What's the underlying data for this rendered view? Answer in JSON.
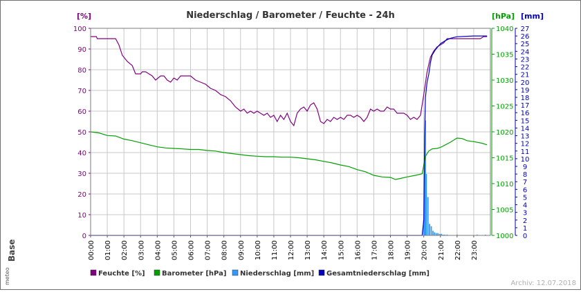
{
  "chart_data": {
    "type": "line",
    "title": "Niederschlag / Barometer / Feuchte - 24h",
    "axes": {
      "left": {
        "label": "[%]",
        "min": 0,
        "max": 100,
        "step": 10,
        "color": "#800080"
      },
      "right1": {
        "label": "[hPa]",
        "min": 1000,
        "max": 1040,
        "step": 5,
        "color": "#00a000"
      },
      "right2": {
        "label": "[mm]",
        "min": 0,
        "max": 27,
        "step": 1,
        "color": "#0000c0"
      }
    },
    "x_ticks": [
      "00:00",
      "01:00",
      "02:00",
      "03:00",
      "04:00",
      "05:00",
      "06:00",
      "07:00",
      "08:00",
      "09:00",
      "10:00",
      "11:00",
      "12:00",
      "13:00",
      "14:00",
      "15:00",
      "16:00",
      "17:00",
      "18:00",
      "19:00",
      "20:00",
      "21:00",
      "22:00",
      "23:00"
    ],
    "grid": true,
    "legend_position": "bottom",
    "series": [
      {
        "name": "Feuchte [%]",
        "axis": "left",
        "color": "#800080",
        "style": "line",
        "points": [
          [
            0,
            96
          ],
          [
            0.35,
            96
          ],
          [
            0.4,
            95
          ],
          [
            1.5,
            95
          ],
          [
            1.7,
            92
          ],
          [
            1.9,
            87
          ],
          [
            2.2,
            84
          ],
          [
            2.5,
            82
          ],
          [
            2.7,
            78
          ],
          [
            3.0,
            78
          ],
          [
            3.1,
            79
          ],
          [
            3.3,
            79
          ],
          [
            3.5,
            78
          ],
          [
            3.7,
            77
          ],
          [
            3.9,
            75
          ],
          [
            4.2,
            77
          ],
          [
            4.4,
            77
          ],
          [
            4.6,
            75
          ],
          [
            4.8,
            74
          ],
          [
            5.0,
            76
          ],
          [
            5.2,
            75
          ],
          [
            5.4,
            77
          ],
          [
            5.7,
            77
          ],
          [
            6.0,
            77
          ],
          [
            6.3,
            75
          ],
          [
            6.6,
            74
          ],
          [
            6.9,
            73
          ],
          [
            7.2,
            71
          ],
          [
            7.5,
            70
          ],
          [
            7.8,
            68
          ],
          [
            8.1,
            67
          ],
          [
            8.4,
            65
          ],
          [
            8.7,
            62
          ],
          [
            9.0,
            60
          ],
          [
            9.2,
            61
          ],
          [
            9.4,
            59
          ],
          [
            9.6,
            60
          ],
          [
            9.8,
            59
          ],
          [
            10.0,
            60
          ],
          [
            10.2,
            59
          ],
          [
            10.4,
            58
          ],
          [
            10.6,
            59
          ],
          [
            10.8,
            57
          ],
          [
            11.0,
            58
          ],
          [
            11.2,
            55
          ],
          [
            11.4,
            58
          ],
          [
            11.6,
            56
          ],
          [
            11.8,
            59
          ],
          [
            12.0,
            55
          ],
          [
            12.2,
            53
          ],
          [
            12.4,
            59
          ],
          [
            12.6,
            61
          ],
          [
            12.8,
            62
          ],
          [
            13.0,
            60
          ],
          [
            13.2,
            63
          ],
          [
            13.4,
            64
          ],
          [
            13.6,
            61
          ],
          [
            13.8,
            55
          ],
          [
            14.0,
            54
          ],
          [
            14.2,
            56
          ],
          [
            14.4,
            55
          ],
          [
            14.6,
            57
          ],
          [
            14.8,
            56
          ],
          [
            15.0,
            57
          ],
          [
            15.2,
            56
          ],
          [
            15.4,
            58
          ],
          [
            15.6,
            58
          ],
          [
            15.8,
            57
          ],
          [
            16.0,
            58
          ],
          [
            16.2,
            57
          ],
          [
            16.4,
            55
          ],
          [
            16.6,
            57
          ],
          [
            16.8,
            61
          ],
          [
            17.0,
            60
          ],
          [
            17.2,
            61
          ],
          [
            17.4,
            60
          ],
          [
            17.6,
            60
          ],
          [
            17.8,
            62
          ],
          [
            18.0,
            61
          ],
          [
            18.2,
            61
          ],
          [
            18.4,
            59
          ],
          [
            18.6,
            59
          ],
          [
            18.8,
            59
          ],
          [
            19.0,
            58
          ],
          [
            19.2,
            56
          ],
          [
            19.4,
            57
          ],
          [
            19.6,
            56
          ],
          [
            19.8,
            58
          ],
          [
            20.0,
            68
          ],
          [
            20.2,
            79
          ],
          [
            20.4,
            86
          ],
          [
            20.6,
            89
          ],
          [
            20.8,
            91
          ],
          [
            21.0,
            92
          ],
          [
            21.2,
            93
          ],
          [
            21.4,
            95
          ],
          [
            21.7,
            95
          ],
          [
            22.0,
            95
          ],
          [
            22.4,
            95
          ],
          [
            22.8,
            95
          ],
          [
            23.1,
            95
          ],
          [
            23.4,
            95
          ],
          [
            23.6,
            96
          ],
          [
            23.8,
            96
          ]
        ]
      },
      {
        "name": "Barometer [hPa]",
        "axis": "right1",
        "color": "#00a000",
        "style": "line",
        "points": [
          [
            0,
            1020
          ],
          [
            0.5,
            1019.8
          ],
          [
            1,
            1019.3
          ],
          [
            1.5,
            1019.2
          ],
          [
            2,
            1018.6
          ],
          [
            2.5,
            1018.3
          ],
          [
            3,
            1017.9
          ],
          [
            3.5,
            1017.5
          ],
          [
            4,
            1017.1
          ],
          [
            4.5,
            1016.9
          ],
          [
            5,
            1016.8
          ],
          [
            5.5,
            1016.7
          ],
          [
            6,
            1016.6
          ],
          [
            6.5,
            1016.6
          ],
          [
            7,
            1016.4
          ],
          [
            7.5,
            1016.3
          ],
          [
            8,
            1016
          ],
          [
            8.5,
            1015.8
          ],
          [
            9,
            1015.6
          ],
          [
            9.5,
            1015.4
          ],
          [
            10,
            1015.3
          ],
          [
            10.5,
            1015.2
          ],
          [
            11,
            1015.2
          ],
          [
            11.5,
            1015.1
          ],
          [
            12,
            1015.1
          ],
          [
            12.5,
            1015
          ],
          [
            13,
            1014.8
          ],
          [
            13.5,
            1014.6
          ],
          [
            14,
            1014.3
          ],
          [
            14.5,
            1014
          ],
          [
            15,
            1013.6
          ],
          [
            15.5,
            1013.3
          ],
          [
            16,
            1012.7
          ],
          [
            16.5,
            1012.3
          ],
          [
            17,
            1011.6
          ],
          [
            17.5,
            1011.3
          ],
          [
            18,
            1011.2
          ],
          [
            18.3,
            1010.8
          ],
          [
            18.6,
            1011.0
          ],
          [
            19,
            1011.3
          ],
          [
            19.5,
            1011.6
          ],
          [
            19.9,
            1011.9
          ],
          [
            20.1,
            1015.3
          ],
          [
            20.3,
            1016.3
          ],
          [
            20.5,
            1016.7
          ],
          [
            20.8,
            1016.8
          ],
          [
            21,
            1017
          ],
          [
            21.3,
            1017.5
          ],
          [
            21.6,
            1018
          ],
          [
            22,
            1018.8
          ],
          [
            22.3,
            1018.7
          ],
          [
            22.6,
            1018.3
          ],
          [
            23,
            1018.1
          ],
          [
            23.5,
            1017.8
          ],
          [
            23.8,
            1017.5
          ]
        ]
      },
      {
        "name": "Niederschlag [mm]",
        "axis": "right2",
        "color": "#3399ff",
        "style": "bars",
        "points": [
          [
            20.0,
            2
          ],
          [
            20.05,
            11
          ],
          [
            20.1,
            15
          ],
          [
            20.15,
            8
          ],
          [
            20.25,
            5
          ],
          [
            20.35,
            1.5
          ],
          [
            20.45,
            1.2
          ],
          [
            20.55,
            0.6
          ],
          [
            20.65,
            0.4
          ],
          [
            20.75,
            0.3
          ],
          [
            20.85,
            0.3
          ],
          [
            20.95,
            0.2
          ],
          [
            21.05,
            0.2
          ],
          [
            21.15,
            0.1
          ],
          [
            21.25,
            0.1
          ],
          [
            21.4,
            0.1
          ],
          [
            22.0,
            0.1
          ],
          [
            23.2,
            0.1
          ],
          [
            23.7,
            0.1
          ]
        ]
      },
      {
        "name": "Gesamtniederschlag [mm]",
        "axis": "right2",
        "color": "#0000c0",
        "style": "line",
        "points": [
          [
            0,
            0
          ],
          [
            19.9,
            0
          ],
          [
            20.0,
            2
          ],
          [
            20.05,
            13
          ],
          [
            20.1,
            18
          ],
          [
            20.2,
            20
          ],
          [
            20.3,
            21
          ],
          [
            20.4,
            22.5
          ],
          [
            20.5,
            23.5
          ],
          [
            20.7,
            24.2
          ],
          [
            21.0,
            25
          ],
          [
            21.3,
            25.4
          ],
          [
            21.6,
            25.7
          ],
          [
            22.0,
            25.9
          ],
          [
            23.0,
            26
          ],
          [
            23.8,
            26
          ]
        ]
      }
    ],
    "legend": [
      "Feuchte [%]",
      "Barometer [hPa]",
      "Niederschlag [mm]",
      "Gesamtniederschlag [mm]"
    ],
    "archive_label": "Archiv: 12.07.2018",
    "logo_text": "Base",
    "logo_brand": "meteo"
  }
}
